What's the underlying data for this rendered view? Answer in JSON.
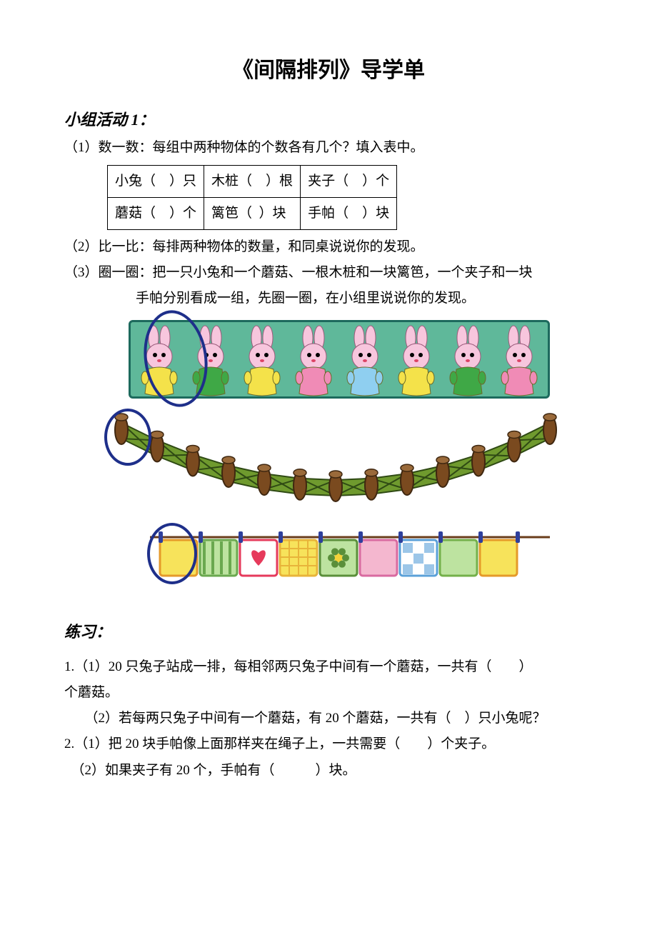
{
  "title": "《间隔排列》导学单",
  "activity_heading": "小组活动 1：",
  "q1": {
    "prefix": "（1）数一数：每组中两种物体的个数各有几个？填入表中。",
    "table": {
      "r1c1_a": "小兔（",
      "r1c1_b": "）只",
      "r1c2_a": "木桩（",
      "r1c2_b": "）根",
      "r1c3_a": "夹子（",
      "r1c3_b": "）个",
      "r2c1_a": "蘑菇（",
      "r2c1_b": "）个",
      "r2c2_a": "篱笆（",
      "r2c2_b": "）块",
      "r2c3_a": "手帕（",
      "r2c3_b": "）块"
    }
  },
  "q2": "（2）比一比：每排两种物体的数量，和同桌说说你的发现。",
  "q3_line1": "（3）圈一圈：把一只小兔和一个蘑菇、一根木桩和一块篱笆，一个夹子和一块",
  "q3_line2": "手帕分别看成一组，先圈一圈，在小组里说说你的发现。",
  "rabbits": {
    "count": 8,
    "shirt_colors": [
      "#f4e24a",
      "#3fa846",
      "#f4e24a",
      "#f08bb6",
      "#8fcff0",
      "#f4e24a",
      "#3fa846",
      "#f08bb6"
    ],
    "skin": "#f7c6dd",
    "bg": "#5fb89a",
    "border": "#1d6a5d"
  },
  "fence": {
    "post_count": 13,
    "post_fill": "#7a4a1f",
    "post_stroke": "#3f2710",
    "panel_fill": "#6f9a2e",
    "panel_dark": "#2f4a14",
    "circle_color": "#1e2f8a"
  },
  "cloths": {
    "count": 9,
    "line_color": "#6a3d1b",
    "clip_color": "#2e3f9c",
    "items": [
      {
        "fill": "#f7e35b",
        "accent": "#e59a2a",
        "pattern": "plain"
      },
      {
        "fill": "#bde3a0",
        "accent": "#6aa84f",
        "pattern": "stripes"
      },
      {
        "fill": "#ffffff",
        "accent": "#e63a5b",
        "pattern": "heart"
      },
      {
        "fill": "#f7e35b",
        "accent": "#e8b43a",
        "pattern": "grid"
      },
      {
        "fill": "#bde3a0",
        "accent": "#5a8f3a",
        "pattern": "flower"
      },
      {
        "fill": "#f4b7cf",
        "accent": "#d96aa0",
        "pattern": "plain"
      },
      {
        "fill": "#ffffff",
        "accent": "#5aa0d8",
        "pattern": "check"
      },
      {
        "fill": "#bde3a0",
        "accent": "#74b04a",
        "pattern": "plain"
      },
      {
        "fill": "#f7e35b",
        "accent": "#e59a2a",
        "pattern": "plain"
      }
    ]
  },
  "exercise_heading": "练习：",
  "ex1_1a": "1.（1）20 只兔子站成一排，每相邻两只兔子中间有一个蘑菇，一共有（　　）",
  "ex1_1b": "个蘑菇。",
  "ex1_2": "　　（2）若每两只兔子中间有一个蘑菇，有 20 个蘑菇，一共有（　）只小兔呢？",
  "ex2_1": "2.（1）把 20 块手帕像上面那样夹在绳子上，一共需要（　　）个夹子。",
  "ex2_2": "　（2）如果夹子有 20 个，手帕有（　　　）块。"
}
